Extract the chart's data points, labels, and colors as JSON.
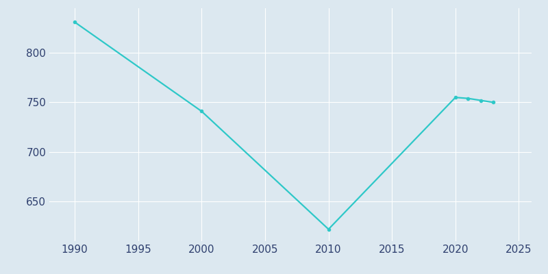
{
  "years": [
    1990,
    2000,
    2010,
    2020,
    2021,
    2022,
    2023
  ],
  "population": [
    831,
    741,
    622,
    755,
    754,
    752,
    750
  ],
  "line_color": "#2ec8c8",
  "marker": "o",
  "marker_size": 3,
  "line_width": 1.6,
  "background_color": "#dce8f0",
  "plot_background_color": "#dce8f0",
  "grid_color": "#ffffff",
  "tick_label_color": "#2e3f6e",
  "xlim": [
    1988,
    2026
  ],
  "ylim": [
    610,
    845
  ],
  "xticks": [
    1990,
    1995,
    2000,
    2005,
    2010,
    2015,
    2020,
    2025
  ],
  "yticks": [
    650,
    700,
    750,
    800
  ],
  "xlabel": "",
  "ylabel": "",
  "tick_fontsize": 11
}
